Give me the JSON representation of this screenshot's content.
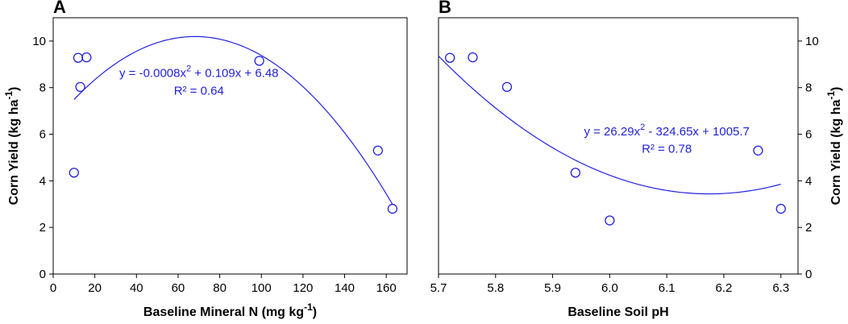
{
  "chart_data": [
    {
      "type": "scatter",
      "panel_label": "A",
      "xlabel": "Baseline Mineral N (mg kg",
      "xlabel_sup": "-1",
      "xlabel_end": ")",
      "ylabel": "Corn Yield (kg ha",
      "ylabel_sup": "-1",
      "ylabel_end": ")",
      "ylabel_side": "left",
      "xlim": [
        0,
        170
      ],
      "ylim": [
        0,
        11
      ],
      "x_ticks": [
        0,
        20,
        40,
        60,
        80,
        100,
        120,
        140,
        160
      ],
      "x_tick_labels": [
        "0",
        "20",
        "40",
        "60",
        "80",
        "100",
        "120",
        "140",
        "160"
      ],
      "y_ticks": [
        0,
        2,
        4,
        6,
        8,
        10
      ],
      "y_tick_labels": [
        "0",
        "2",
        "4",
        "6",
        "8",
        "10"
      ],
      "points": [
        {
          "x": 10,
          "y": 4.35
        },
        {
          "x": 12,
          "y": 9.28
        },
        {
          "x": 13,
          "y": 8.03
        },
        {
          "x": 16,
          "y": 9.3
        },
        {
          "x": 99,
          "y": 9.15
        },
        {
          "x": 156,
          "y": 5.3
        },
        {
          "x": 163,
          "y": 2.8
        }
      ],
      "fit": {
        "a": -0.0008,
        "b": 0.109,
        "c": 6.48,
        "x_range": [
          10,
          163
        ]
      },
      "equation": "y = -0.0008x",
      "equation_sup": "2",
      "equation_rest": " + 0.109x + 6.48",
      "r_squared": "R² = 0.64",
      "equation_pos": {
        "x": 70,
        "y": 8.45
      },
      "r2_pos": {
        "x": 70,
        "y": 7.7
      }
    },
    {
      "type": "scatter",
      "panel_label": "B",
      "xlabel": "Baseline Soil pH",
      "ylabel": "Corn Yield (kg ha",
      "ylabel_sup": "-1",
      "ylabel_end": ")",
      "ylabel_side": "right",
      "xlim": [
        5.7,
        6.33
      ],
      "ylim": [
        0,
        11
      ],
      "x_ticks": [
        5.7,
        5.8,
        5.9,
        6.0,
        6.1,
        6.2,
        6.3
      ],
      "x_tick_labels": [
        "5.7",
        "5.8",
        "5.9",
        "6.0",
        "6.1",
        "6.2",
        "6.3"
      ],
      "y_ticks": [
        0,
        2,
        4,
        6,
        8,
        10
      ],
      "y_tick_labels": [
        "0",
        "2",
        "4",
        "6",
        "8",
        "10"
      ],
      "points": [
        {
          "x": 5.72,
          "y": 9.28
        },
        {
          "x": 5.76,
          "y": 9.3
        },
        {
          "x": 5.82,
          "y": 8.03
        },
        {
          "x": 5.94,
          "y": 4.35
        },
        {
          "x": 6.0,
          "y": 2.3
        },
        {
          "x": 6.26,
          "y": 5.3
        },
        {
          "x": 6.3,
          "y": 2.8
        }
      ],
      "fit": {
        "a": 26.29,
        "b": -324.65,
        "c": 1005.7,
        "x_range": [
          5.7,
          6.3
        ]
      },
      "equation": "y = 26.29x",
      "equation_sup": "2",
      "equation_rest": " - 324.65x + 1005.7",
      "r_squared": "R² = 0.78",
      "equation_pos": {
        "x": 6.1,
        "y": 5.95
      },
      "r2_pos": {
        "x": 6.1,
        "y": 5.2
      }
    }
  ],
  "colors": {
    "series": "#2222dd",
    "axis": "#000000",
    "background": "#ffffff"
  }
}
